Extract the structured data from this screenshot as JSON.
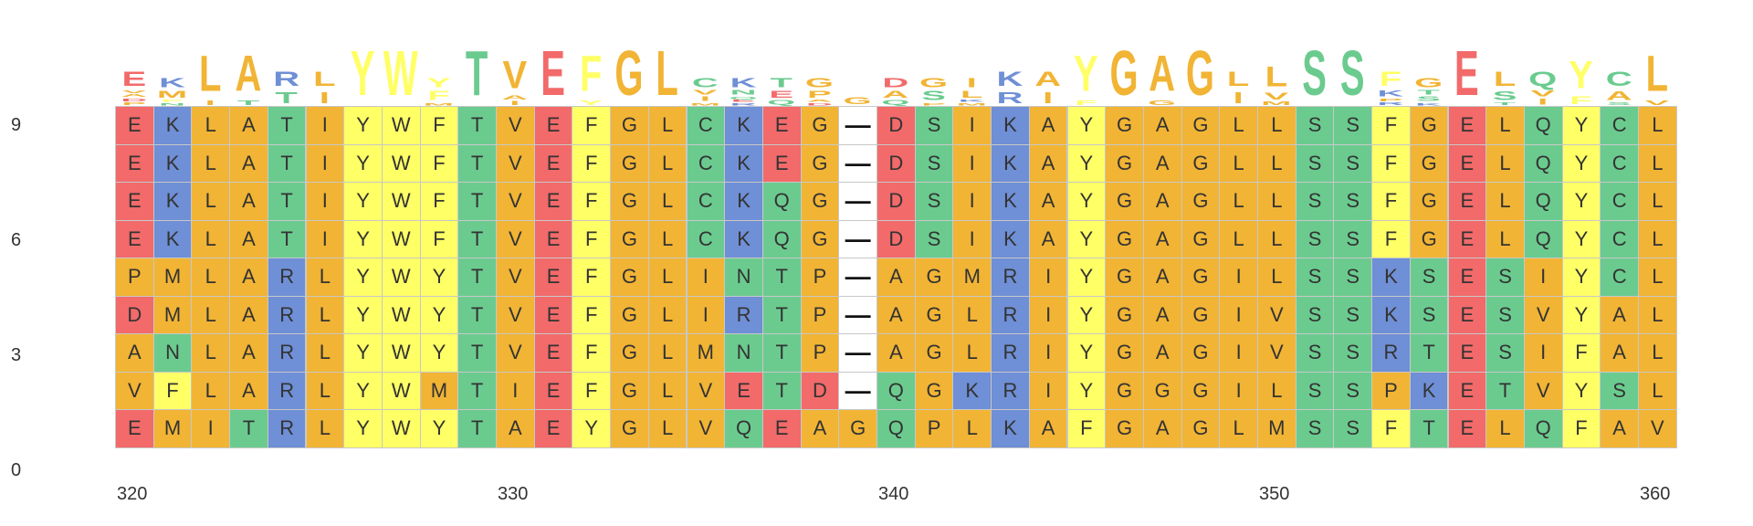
{
  "colors": {
    "E": "#f26a6a",
    "D": "#f26a6a",
    "K": "#6f8fd6",
    "R": "#6f8fd6",
    "T": "#6bcb8f",
    "S": "#6bcb8f",
    "N": "#6bcb8f",
    "Q": "#6bcb8f",
    "C": "#6bcb8f",
    "Y": "#ffff66",
    "W": "#ffff66",
    "F": "#ffff66",
    "L": "#f1b434",
    "A": "#f1b434",
    "I": "#f1b434",
    "V": "#f1b434",
    "M": "#f1b434",
    "G": "#f1b434",
    "P": "#f1b434",
    "H": "#6f8fd6"
  },
  "y_axis": {
    "ticks": [
      "9",
      "6",
      "3",
      "0"
    ]
  },
  "x_axis": {
    "ticks": [
      "320",
      "330",
      "340",
      "350",
      "360"
    ]
  },
  "alignment_rows": [
    "EKLATIYWFTVEFGLCKEG-DSIKAYGAGLLSSFGELQYCL",
    "EKLATIYWFTVEFGLCKEG-DSIKAYGAGLLSSFGELQYCL",
    "EKLATIYWFTVEFGLCKQG-DSIKAYGAGLLSSFGELQYCL",
    "EKLATIYWFTVEFGLCKQG-DSIKAYGAGLLSSFGELQYCL",
    "PMLARLYWYTVEFGLINTP-AGMRIYGAGILSSKSESIYCL",
    "DMLARLYWYTVEFGLIRTP-AGLRIYGAGIVSSKSESVYAL",
    "ANLARLYWYTVEFGLMNTP-AGLRIYGAGIVSSRTESIFAL",
    "VFLARLYWMTIEFGLVETD-QGKRIYGGGILSSPKETVYSL",
    "EMITRLYWYTAEYGLVQEAGQPLKAFGAGLMSSFTELQFAV"
  ],
  "logo_consensus": "EKLARLYWYTVEFGLCKTG-DSIKAYGAGLLSSFGELQYCL"
}
